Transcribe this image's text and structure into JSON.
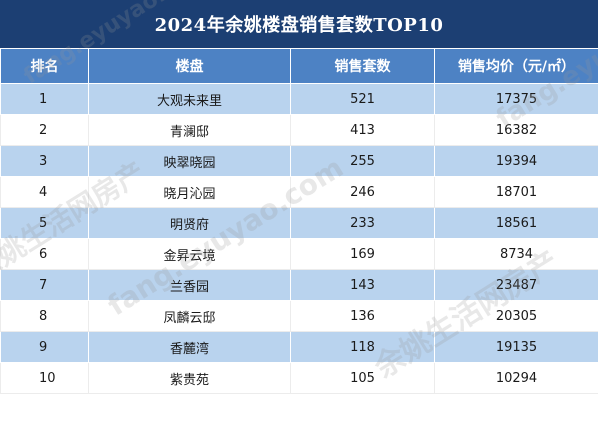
{
  "title": "2024年余姚楼盘销售套数TOP10",
  "headers": {
    "rank": "排名",
    "project": "楼盘",
    "units": "销售套数",
    "price": "销售均价（元/㎡）"
  },
  "rows": [
    {
      "rank": "1",
      "project": "大观未来里",
      "units": "521",
      "price": "17375"
    },
    {
      "rank": "2",
      "project": "青澜邸",
      "units": "413",
      "price": "16382"
    },
    {
      "rank": "3",
      "project": "映翠晓园",
      "units": "255",
      "price": "19394"
    },
    {
      "rank": "4",
      "project": "晓月沁园",
      "units": "246",
      "price": "18701"
    },
    {
      "rank": "5",
      "project": "明贤府",
      "units": "233",
      "price": "18561"
    },
    {
      "rank": "6",
      "project": "金昇云境",
      "units": "169",
      "price": "8734"
    },
    {
      "rank": "7",
      "project": "兰香园",
      "units": "143",
      "price": "23487"
    },
    {
      "rank": "8",
      "project": "凤麟云邸",
      "units": "136",
      "price": "20305"
    },
    {
      "rank": "9",
      "project": "香麓湾",
      "units": "118",
      "price": "19135"
    },
    {
      "rank": "10",
      "project": "紫贵苑",
      "units": "105",
      "price": "10294"
    }
  ],
  "watermark": {
    "text1": "余姚生活网房产",
    "text2": "fang.eyuyao.com"
  },
  "colors": {
    "title_bg": "#1c3f73",
    "header_bg": "#4d82c4",
    "stripe": "#b9d3ee"
  }
}
